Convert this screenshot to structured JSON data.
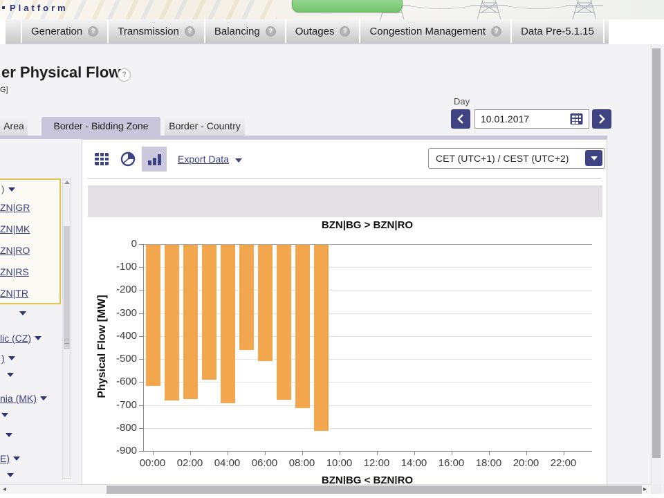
{
  "banner": {
    "brand_fragment": "Platform"
  },
  "navbar": {
    "items": [
      {
        "label": "Generation",
        "help": "?"
      },
      {
        "label": "Transmission",
        "help": "?"
      },
      {
        "label": "Balancing",
        "help": "?"
      },
      {
        "label": "Outages",
        "help": "?"
      },
      {
        "label": "Congestion Management",
        "help": "?"
      },
      {
        "label": "Data Pre-5.1.15",
        "help": ""
      }
    ]
  },
  "page": {
    "title_fragment": "er Physical Flow",
    "title_help": "?",
    "subtitle_fragment": "G]"
  },
  "day_control": {
    "label": "Day",
    "date_value": "10.01.2017"
  },
  "view_tabs": {
    "tabs": [
      {
        "label": "Area",
        "active": false
      },
      {
        "label": "Border - Bidding Zone",
        "active": true
      },
      {
        "label": "Border - Country",
        "active": false
      }
    ]
  },
  "sidebar": {
    "selected_group_fragment": ")",
    "zone_links": [
      "ZN|GR",
      "ZN|MK",
      "ZN|RO",
      "ZN|RS",
      "ZN|TR"
    ],
    "country_rows": [
      "",
      "lic (CZ)",
      ")",
      "",
      "nia (MK)",
      "",
      "",
      "E)",
      ""
    ]
  },
  "toolbar": {
    "export_label": "Export Data",
    "timezone_value": "CET (UTC+1) / CEST (UTC+2)"
  },
  "chart_data": {
    "type": "bar",
    "title": "BZN|BG > BZN|RO",
    "footer_label": "BZN|BG < BZN|RO",
    "ylabel": "Physical Flow [MW]",
    "ylim": [
      -900,
      0
    ],
    "ytick_interval": 100,
    "x_span_hours": 24,
    "xtick_labels": [
      "00:00",
      "02:00",
      "04:00",
      "06:00",
      "08:00",
      "10:00",
      "12:00",
      "14:00",
      "16:00",
      "18:00",
      "20:00",
      "22:00"
    ],
    "bar_color": "#F2A74E",
    "grid": true,
    "legend": "none",
    "series": [
      {
        "name": "Physical Flow BZN|BG > BZN|RO",
        "points": [
          {
            "hour": "00:00",
            "value": -615
          },
          {
            "hour": "01:00",
            "value": -676
          },
          {
            "hour": "02:00",
            "value": -672
          },
          {
            "hour": "03:00",
            "value": -588
          },
          {
            "hour": "04:00",
            "value": -690
          },
          {
            "hour": "05:00",
            "value": -458
          },
          {
            "hour": "06:00",
            "value": -505
          },
          {
            "hour": "07:00",
            "value": -674
          },
          {
            "hour": "08:00",
            "value": -710
          },
          {
            "hour": "09:00",
            "value": -810
          }
        ]
      }
    ]
  }
}
